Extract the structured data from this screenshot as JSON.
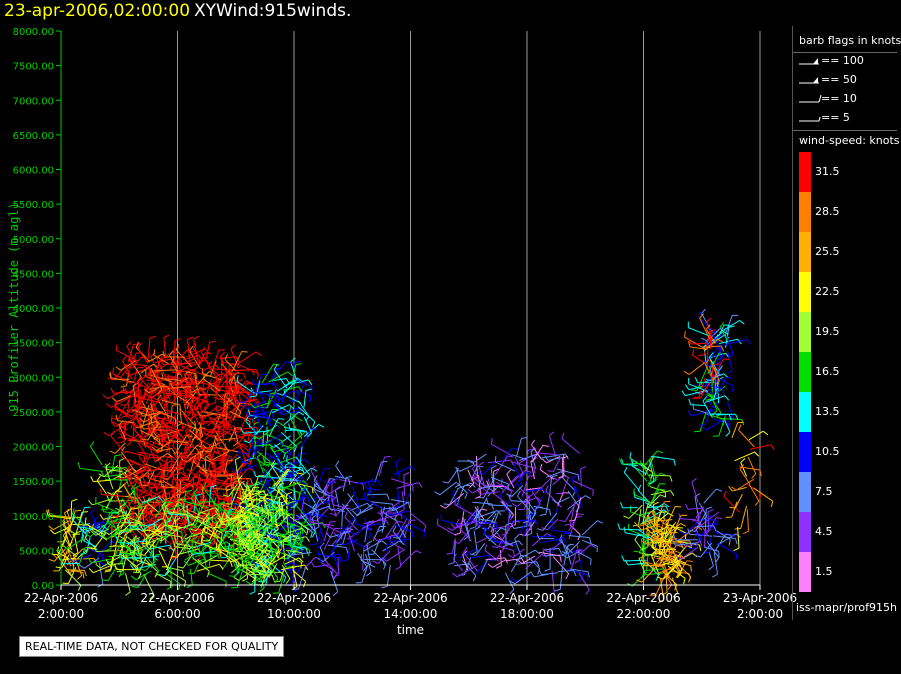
{
  "header": {
    "date_label": "23-apr-2006,02:00:00",
    "plot_label": "XYWind:915winds."
  },
  "legend": {
    "barb_heading": "barb flags in knots",
    "flags": [
      {
        "label": "== 100",
        "knots": 100
      },
      {
        "label": "== 50",
        "knots": 50
      },
      {
        "label": "== 10",
        "knots": 10
      },
      {
        "label": "== 5",
        "knots": 5
      }
    ],
    "colorbar_heading": "wind-speed: knots",
    "colorbar": [
      {
        "label": "31.5",
        "color": "#ff0000"
      },
      {
        "label": "28.5",
        "color": "#ff7f00"
      },
      {
        "label": "25.5",
        "color": "#ffb000"
      },
      {
        "label": "22.5",
        "color": "#ffff00"
      },
      {
        "label": "19.5",
        "color": "#a0ff30"
      },
      {
        "label": "16.5",
        "color": "#00e000"
      },
      {
        "label": "13.5",
        "color": "#00ffff"
      },
      {
        "label": "10.5",
        "color": "#0000ff"
      },
      {
        "label": "7.5",
        "color": "#6090ff"
      },
      {
        "label": "4.5",
        "color": "#9030ff"
      },
      {
        "label": "1.5",
        "color": "#ff80ff"
      }
    ]
  },
  "footer": {
    "source": "iss-mapr/prof915h",
    "quality_note": "REAL-TIME DATA, NOT CHECKED FOR QUALITY"
  },
  "chart_data": {
    "type": "scatter",
    "title": "XYWind:915winds.",
    "xlabel": "time",
    "ylabel": "915 Profiler Altitude (m agl)",
    "ylim": [
      0,
      8000
    ],
    "xlim_hours": [
      0,
      24
    ],
    "y_ticks": [
      "0.00",
      "500.00",
      "1000.00",
      "1500.00",
      "2000.00",
      "2500.00",
      "3000.00",
      "3500.00",
      "4000.00",
      "4500.00",
      "5000.00",
      "5500.00",
      "6000.00",
      "6500.00",
      "7000.00",
      "7500.00",
      "8000.00"
    ],
    "x_ticks": [
      {
        "date": "22-Apr-2006",
        "time": "2:00:00",
        "hours": 0
      },
      {
        "date": "22-Apr-2006",
        "time": "6:00:00",
        "hours": 4
      },
      {
        "date": "22-Apr-2006",
        "time": "10:00:00",
        "hours": 8
      },
      {
        "date": "22-Apr-2006",
        "time": "14:00:00",
        "hours": 12
      },
      {
        "date": "22-Apr-2006",
        "time": "18:00:00",
        "hours": 16
      },
      {
        "date": "22-Apr-2006",
        "time": "22:00:00",
        "hours": 20
      },
      {
        "date": "23-Apr-2006",
        "time": "2:00:00",
        "hours": 24
      }
    ],
    "grid": "vertical",
    "series": [
      {
        "t0": 0.1,
        "t1": 0.6,
        "z0": 100,
        "z1": 1000,
        "speed_knots": 24,
        "density": 40
      },
      {
        "t0": 0.6,
        "t1": 1.4,
        "z0": 200,
        "z1": 900,
        "speed_knots": 12,
        "density": 25
      },
      {
        "t0": 1.4,
        "t1": 2.2,
        "z0": 200,
        "z1": 1800,
        "speed_knots": 19,
        "density": 60
      },
      {
        "t0": 2.2,
        "t1": 6.2,
        "z0": 700,
        "z1": 3300,
        "speed_knots": 32,
        "density": 700
      },
      {
        "t0": 2.0,
        "t1": 7.0,
        "z0": 150,
        "z1": 1200,
        "speed_knots": 18,
        "density": 250
      },
      {
        "t0": 6.6,
        "t1": 8.4,
        "z0": 200,
        "z1": 3000,
        "speed_knots": 13,
        "density": 220
      },
      {
        "t0": 6.0,
        "t1": 8.0,
        "z0": 150,
        "z1": 1500,
        "speed_knots": 20,
        "density": 150
      },
      {
        "t0": 8.2,
        "t1": 12.0,
        "z0": 200,
        "z1": 1600,
        "speed_knots": 7,
        "density": 150
      },
      {
        "t0": 13.5,
        "t1": 17.9,
        "z0": 150,
        "z1": 1900,
        "speed_knots": 6,
        "density": 230
      },
      {
        "t0": 19.8,
        "t1": 20.3,
        "z0": 100,
        "z1": 1900,
        "speed_knots": 16,
        "density": 60
      },
      {
        "t0": 20.3,
        "t1": 21.2,
        "z0": 100,
        "z1": 1000,
        "speed_knots": 25,
        "density": 90
      },
      {
        "t0": 21.8,
        "t1": 22.6,
        "z0": 400,
        "z1": 1200,
        "speed_knots": 8,
        "density": 40
      },
      {
        "t0": 22.1,
        "t1": 22.9,
        "z0": 2400,
        "z1": 3700,
        "speed_knots": 12,
        "density": 70
      },
      {
        "t0": 22.0,
        "t1": 22.5,
        "z0": 2800,
        "z1": 3600,
        "speed_knots": 31,
        "density": 20
      },
      {
        "t0": 23.0,
        "t1": 23.9,
        "z0": 800,
        "z1": 2200,
        "speed_knots": 27,
        "density": 20
      }
    ]
  }
}
